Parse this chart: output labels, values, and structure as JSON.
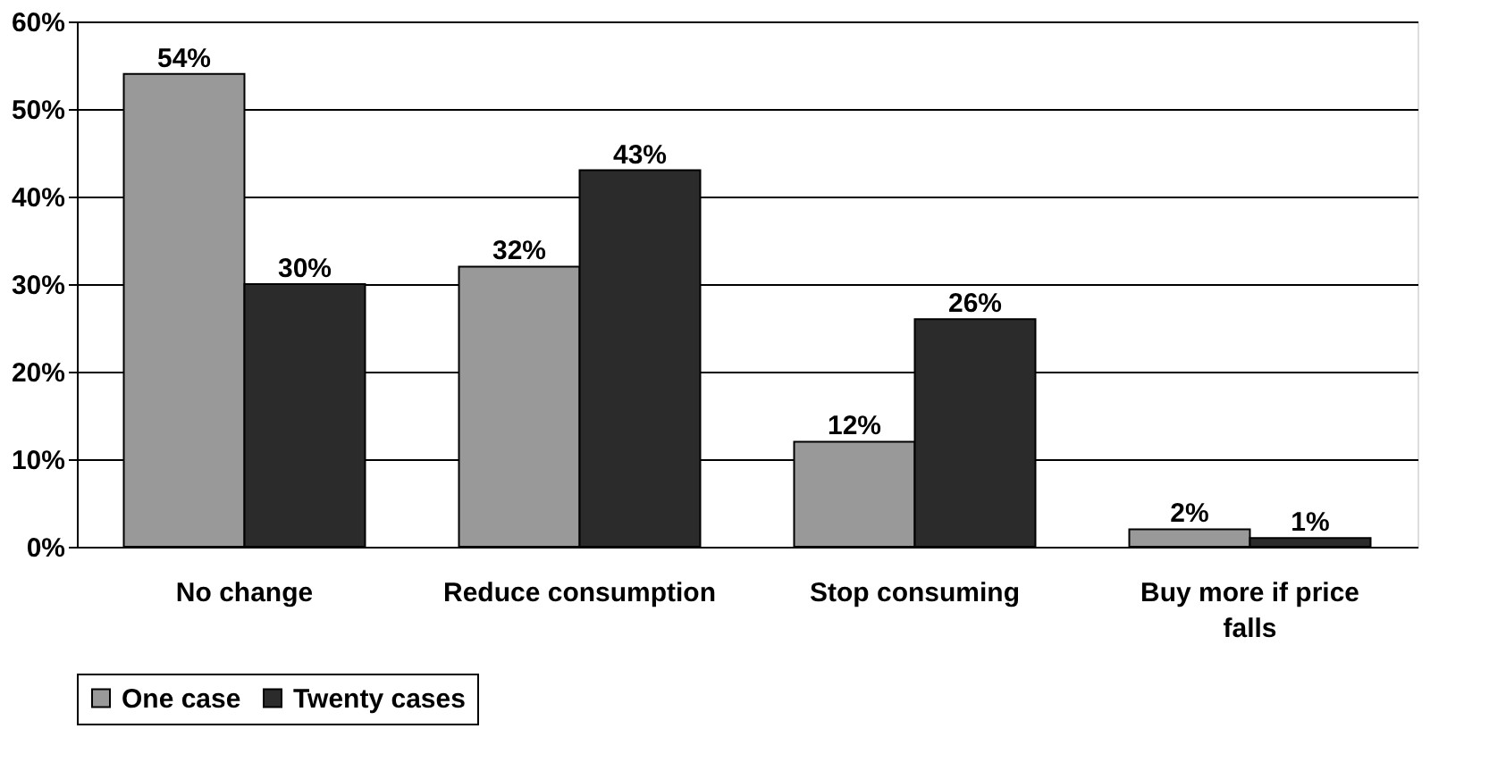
{
  "chart_data": {
    "type": "bar",
    "categories": [
      "No change",
      "Reduce consumption",
      "Stop consuming",
      "Buy more if price falls"
    ],
    "series": [
      {
        "name": "One case",
        "color": "#999999",
        "values": [
          54,
          32,
          12,
          2
        ],
        "value_labels": [
          "54%",
          "32%",
          "12%",
          "2%"
        ]
      },
      {
        "name": "Twenty cases",
        "color": "#2b2b2b",
        "values": [
          30,
          43,
          26,
          1
        ],
        "value_labels": [
          "30%",
          "43%",
          "26%",
          "1%"
        ]
      }
    ],
    "ylim": [
      0,
      60
    ],
    "yticks": [
      {
        "value": 0,
        "label": "0%"
      },
      {
        "value": 10,
        "label": "10%"
      },
      {
        "value": 20,
        "label": "20%"
      },
      {
        "value": 30,
        "label": "30%"
      },
      {
        "value": 40,
        "label": "40%"
      },
      {
        "value": 50,
        "label": "50%"
      },
      {
        "value": 60,
        "label": "60%"
      }
    ],
    "grid": "y",
    "legend": "bottom"
  }
}
